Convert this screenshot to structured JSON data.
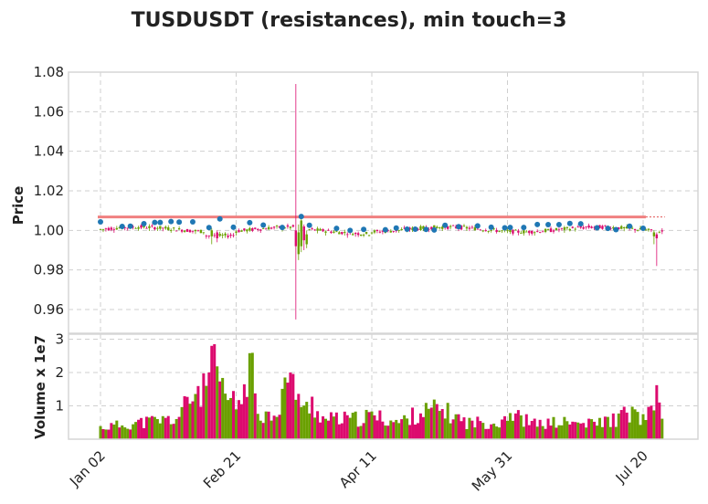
{
  "chart_data": [
    {
      "type": "candlestick",
      "title": "TUSDUSDT (resistances), min touch=3",
      "ylabel": "Price",
      "ylim": [
        0.948,
        1.08
      ],
      "yticks": [
        "0.96",
        "0.98",
        "1.00",
        "1.02",
        "1.04",
        "1.06",
        "1.08"
      ],
      "ytick_values": [
        0.96,
        0.98,
        1.0,
        1.02,
        1.04,
        1.06,
        1.08
      ],
      "xticks": [
        "Jan 02",
        "Feb 21",
        "Apr 11",
        "May 31",
        "Jul 20"
      ],
      "xtick_index": [
        0,
        50,
        100,
        150,
        200
      ],
      "grid": true,
      "up_color": "#6aa000",
      "down_color": "#dc0a6e",
      "resistance_level": 1.0068,
      "resistance_color": "#f08080",
      "touch_color": "#1f77b4",
      "touch_markers": [
        {
          "i": 0,
          "y": 1.0043
        },
        {
          "i": 8,
          "y": 1.002
        },
        {
          "i": 11,
          "y": 1.0021
        },
        {
          "i": 16,
          "y": 1.0034
        },
        {
          "i": 20,
          "y": 1.004
        },
        {
          "i": 22,
          "y": 1.004
        },
        {
          "i": 26,
          "y": 1.0045
        },
        {
          "i": 29,
          "y": 1.0042
        },
        {
          "i": 34,
          "y": 1.0043
        },
        {
          "i": 40,
          "y": 1.0014
        },
        {
          "i": 44,
          "y": 1.0058
        },
        {
          "i": 49,
          "y": 1.0016
        },
        {
          "i": 55,
          "y": 1.0039
        },
        {
          "i": 60,
          "y": 1.0027
        },
        {
          "i": 67,
          "y": 1.0015
        },
        {
          "i": 74,
          "y": 1.007
        },
        {
          "i": 77,
          "y": 1.0026
        },
        {
          "i": 87,
          "y": 1.001
        },
        {
          "i": 92,
          "y": 1.0
        },
        {
          "i": 97,
          "y": 1.0005
        },
        {
          "i": 105,
          "y": 1.0003
        },
        {
          "i": 109,
          "y": 1.0012
        },
        {
          "i": 113,
          "y": 1.0006
        },
        {
          "i": 116,
          "y": 1.0006
        },
        {
          "i": 120,
          "y": 1.0005
        },
        {
          "i": 123,
          "y": 1.0002
        },
        {
          "i": 127,
          "y": 1.0026
        },
        {
          "i": 132,
          "y": 1.0019
        },
        {
          "i": 139,
          "y": 1.0023
        },
        {
          "i": 144,
          "y": 1.0016
        },
        {
          "i": 149,
          "y": 1.0013
        },
        {
          "i": 151,
          "y": 1.0015
        },
        {
          "i": 156,
          "y": 1.0015
        },
        {
          "i": 161,
          "y": 1.003
        },
        {
          "i": 165,
          "y": 1.0029
        },
        {
          "i": 169,
          "y": 1.0029
        },
        {
          "i": 173,
          "y": 1.0035
        },
        {
          "i": 177,
          "y": 1.0033
        },
        {
          "i": 183,
          "y": 1.0013
        },
        {
          "i": 187,
          "y": 1.001
        },
        {
          "i": 190,
          "y": 1.0004
        },
        {
          "i": 195,
          "y": 1.0021
        },
        {
          "i": 200,
          "y": 1.0011
        }
      ],
      "ohlc_rule": "generated per bar index from the visual envelope"
    },
    {
      "type": "bar",
      "ylabel": "Volume x 1e7",
      "ylim": [
        0,
        3.15
      ],
      "yticks": [
        "1",
        "2",
        "3"
      ],
      "ytick_values": [
        1,
        2,
        3
      ],
      "n_bars": 208,
      "volume_envelope": [
        {
          "i": 0,
          "v": 0.35
        },
        {
          "i": 10,
          "v": 0.45
        },
        {
          "i": 20,
          "v": 0.55
        },
        {
          "i": 28,
          "v": 0.6
        },
        {
          "i": 33,
          "v": 1.2
        },
        {
          "i": 36,
          "v": 1.5
        },
        {
          "i": 39,
          "v": 1.4
        },
        {
          "i": 41,
          "v": 2.7
        },
        {
          "i": 43,
          "v": 1.7
        },
        {
          "i": 46,
          "v": 1.3
        },
        {
          "i": 50,
          "v": 1.0
        },
        {
          "i": 53,
          "v": 1.4
        },
        {
          "i": 55,
          "v": 2.6
        },
        {
          "i": 58,
          "v": 0.9
        },
        {
          "i": 62,
          "v": 0.7
        },
        {
          "i": 66,
          "v": 1.0
        },
        {
          "i": 68,
          "v": 1.8
        },
        {
          "i": 70,
          "v": 1.9
        },
        {
          "i": 72,
          "v": 1.6
        },
        {
          "i": 75,
          "v": 0.8
        },
        {
          "i": 78,
          "v": 1.1
        },
        {
          "i": 82,
          "v": 0.6
        },
        {
          "i": 95,
          "v": 0.6
        },
        {
          "i": 100,
          "v": 0.7
        },
        {
          "i": 110,
          "v": 0.5
        },
        {
          "i": 118,
          "v": 0.8
        },
        {
          "i": 125,
          "v": 0.9
        },
        {
          "i": 135,
          "v": 0.5
        },
        {
          "i": 147,
          "v": 0.5
        },
        {
          "i": 150,
          "v": 0.8
        },
        {
          "i": 160,
          "v": 0.45
        },
        {
          "i": 170,
          "v": 0.5
        },
        {
          "i": 180,
          "v": 0.45
        },
        {
          "i": 190,
          "v": 0.6
        },
        {
          "i": 195,
          "v": 0.8
        },
        {
          "i": 200,
          "v": 0.6
        },
        {
          "i": 203,
          "v": 0.75
        },
        {
          "i": 205,
          "v": 1.6
        },
        {
          "i": 207,
          "v": 0.6
        }
      ]
    }
  ]
}
